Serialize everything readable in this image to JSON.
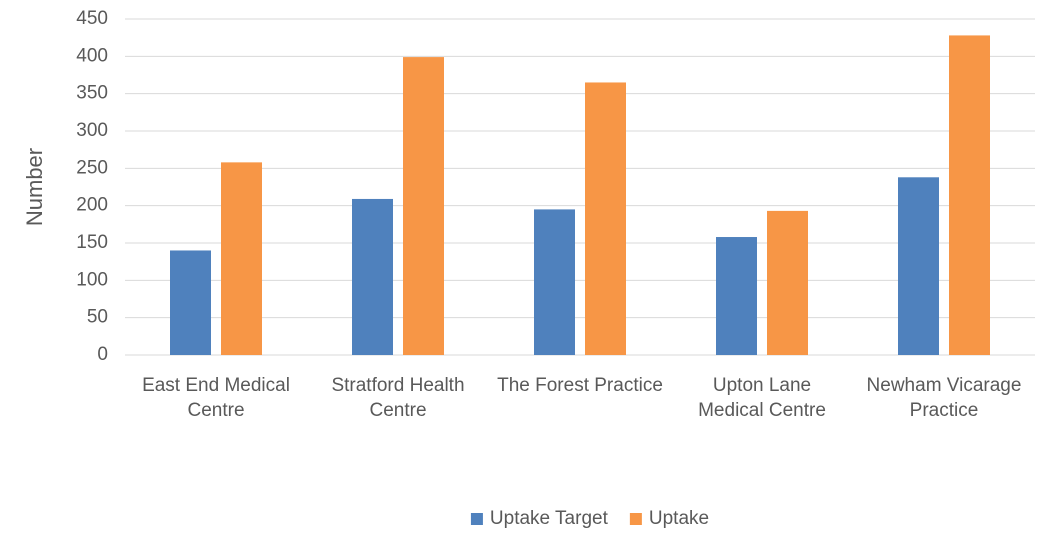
{
  "chart_data": {
    "type": "bar",
    "categories": [
      "East End Medical Centre",
      "Stratford Health Centre",
      "The Forest Practice",
      "Upton Lane Medical Centre",
      "Newham Vicarage Practice"
    ],
    "series": [
      {
        "name": "Uptake Target",
        "color": "#4f81bd",
        "values": [
          140,
          209,
          195,
          158,
          238
        ]
      },
      {
        "name": "Uptake",
        "color": "#f79646",
        "values": [
          258,
          399,
          365,
          193,
          428
        ]
      }
    ],
    "y_label": "Number",
    "ylim": [
      0,
      450
    ],
    "yticks": [
      0,
      50,
      100,
      150,
      200,
      250,
      300,
      350,
      400,
      450
    ],
    "grid": true,
    "legend": "bottom"
  }
}
